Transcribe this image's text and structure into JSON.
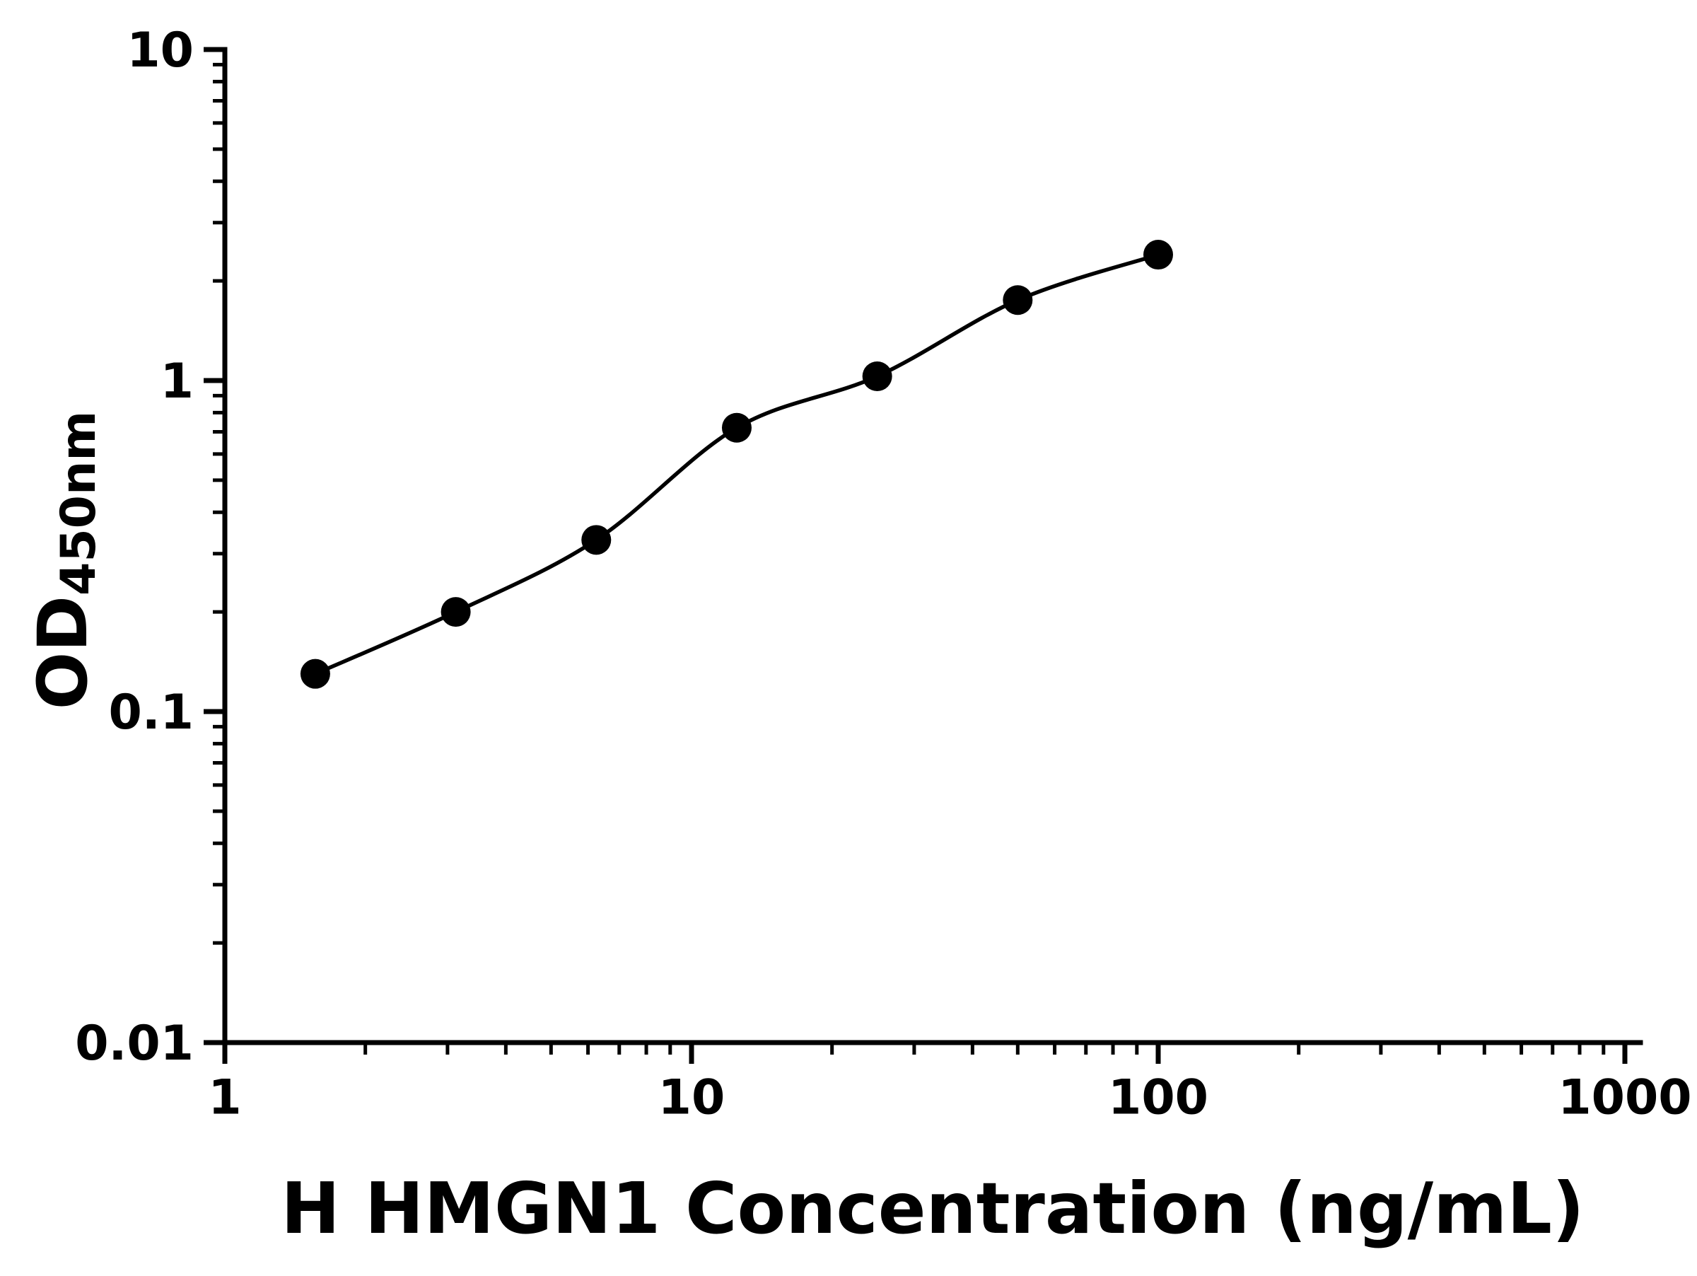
{
  "chart_data": {
    "type": "scatter",
    "title": "",
    "xlabel": "H HMGN1 Concentration (ng/mL)",
    "ylabel": "OD",
    "ylabel_subscript": "450nm",
    "x_scale": "log",
    "y_scale": "log",
    "xlim": [
      1,
      1000
    ],
    "ylim": [
      0.01,
      10
    ],
    "x_ticks": [
      1,
      10,
      100,
      1000
    ],
    "x_tick_labels": [
      "1",
      "10",
      "100",
      "1000"
    ],
    "y_ticks": [
      0.01,
      0.1,
      1,
      10
    ],
    "y_tick_labels": [
      "0.01",
      "0.1",
      "1",
      "10"
    ],
    "x": [
      1.5625,
      3.125,
      6.25,
      12.5,
      25,
      50,
      100
    ],
    "y": [
      0.13,
      0.2,
      0.33,
      0.72,
      1.03,
      1.75,
      2.4
    ],
    "line": true,
    "line_color": "#000000",
    "marker_color": "#000000",
    "marker_shape": "circle",
    "grid": false,
    "legend": false,
    "background": "#ffffff"
  }
}
